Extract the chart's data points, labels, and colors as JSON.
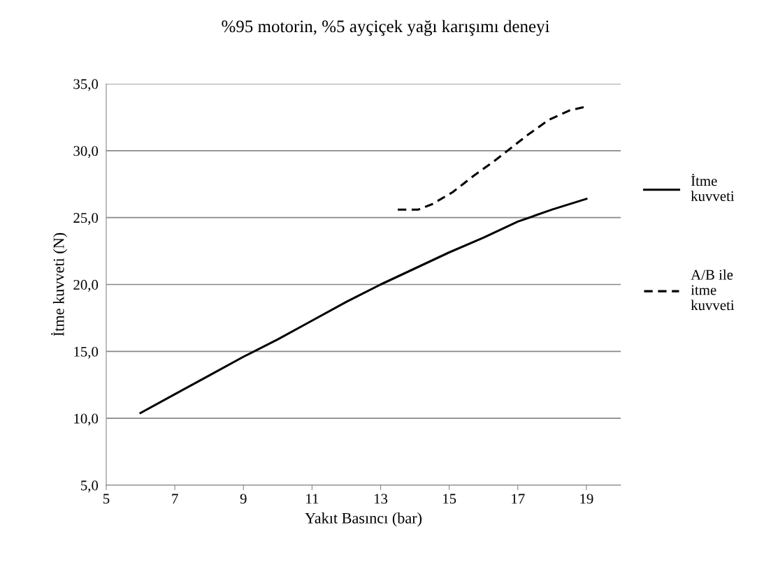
{
  "chart_data": {
    "type": "line",
    "title": "%95 motorin, %5 ayçiçek yağı karışımı deneyi",
    "xlabel": "Yakıt Basıncı (bar)",
    "ylabel": "İtme kuvveti (N)",
    "xlim": [
      5,
      20
    ],
    "xticks": [
      5,
      7,
      9,
      11,
      13,
      15,
      17,
      19
    ],
    "ylim": [
      5,
      35
    ],
    "yticks": [
      {
        "value": 5,
        "label": "5,0"
      },
      {
        "value": 10,
        "label": "10,0"
      },
      {
        "value": 15,
        "label": "15,0"
      },
      {
        "value": 20,
        "label": "20,0"
      },
      {
        "value": 25,
        "label": "25,0"
      },
      {
        "value": 30,
        "label": "30,0"
      },
      {
        "value": 35,
        "label": "35,0"
      }
    ],
    "grid": "y",
    "legend": "right",
    "marker": "none",
    "series": [
      {
        "name": "İtme kuvveti",
        "color": "#000000",
        "line_style": "solid",
        "x": [
          6,
          7,
          8,
          9,
          10,
          11,
          12,
          13,
          14,
          15,
          16,
          17,
          18,
          19
        ],
        "values": [
          10.4,
          11.8,
          13.2,
          14.6,
          15.9,
          17.3,
          18.7,
          20.0,
          21.2,
          22.4,
          23.5,
          24.7,
          25.6,
          26.4
        ]
      },
      {
        "name": "A/B ile itme kuvveti",
        "color": "#000000",
        "line_style": "dashed",
        "x": [
          13.5,
          14.1,
          14.5,
          15.1,
          15.7,
          16.3,
          16.7,
          17.3,
          17.9,
          18.5,
          19
        ],
        "values": [
          25.6,
          25.6,
          26.0,
          26.9,
          28.1,
          29.2,
          30.0,
          31.2,
          32.3,
          33.0,
          33.3
        ]
      }
    ]
  }
}
